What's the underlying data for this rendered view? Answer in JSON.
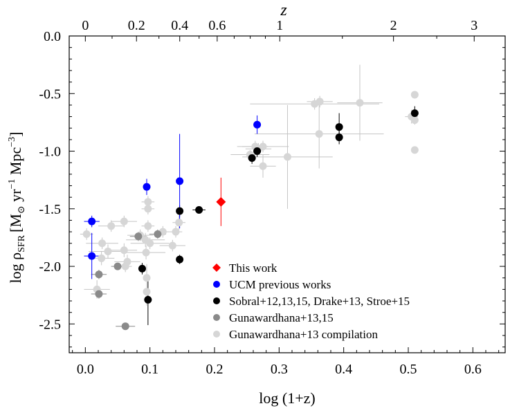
{
  "chart_data": {
    "type": "scatter",
    "xlabel": "log (1+z)",
    "ylabel_main": "log ρ",
    "ylabel_sub": "SFR",
    "ylabel_units_open": "[M",
    "ylabel_units_sun": "⊙",
    "ylabel_units_rest": " yr",
    "ylabel_exp1": "−1",
    "ylabel_units_mpc": " Mpc",
    "ylabel_exp2": "−3",
    "ylabel_units_close": "]",
    "top_axis_label": "z",
    "xlim": [
      -0.025,
      0.65
    ],
    "ylim": [
      -2.75,
      0.0
    ],
    "x_ticks": [
      0.0,
      0.1,
      0.2,
      0.3,
      0.4,
      0.5,
      0.6
    ],
    "x_tick_labels": [
      "0.0",
      "0.1",
      "0.2",
      "0.3",
      "0.4",
      "0.5",
      "0.6"
    ],
    "y_ticks": [
      0.0,
      -0.5,
      -1.0,
      -1.5,
      -2.0,
      -2.5
    ],
    "y_tick_labels": [
      "0.0",
      "-0.5",
      "-1.0",
      "-1.5",
      "-2.0",
      "-2.5"
    ],
    "z_ticks": [
      0,
      0.2,
      0.4,
      0.6,
      1,
      2,
      3
    ],
    "z_tick_labels": [
      "0",
      "0.2",
      "0.4",
      "0.6",
      "1",
      "2",
      "3"
    ],
    "legend_position": "bottom-center",
    "series": [
      {
        "name": "Gunawardhana+13 compilation",
        "color": "#d6d6d6",
        "marker": "circle",
        "points": [
          {
            "x": 0.002,
            "y": -1.72,
            "xerr": 0.01,
            "yerr": 0.05
          },
          {
            "x": 0.018,
            "y": -2.2,
            "xerr": 0.02,
            "yerr": 0.08
          },
          {
            "x": 0.025,
            "y": -1.93,
            "xerr": 0.02,
            "yerr": 0.06
          },
          {
            "x": 0.026,
            "y": -1.8,
            "xerr": 0.025,
            "yerr": 0.05
          },
          {
            "x": 0.035,
            "y": -1.87,
            "xerr": 0.03,
            "yerr": 0.06
          },
          {
            "x": 0.04,
            "y": -1.65,
            "xerr": 0.02,
            "yerr": 0.05
          },
          {
            "x": 0.06,
            "y": -1.61,
            "xerr": 0.02,
            "yerr": 0.05
          },
          {
            "x": 0.06,
            "y": -1.86,
            "xerr": 0.02,
            "yerr": 0.06
          },
          {
            "x": 0.065,
            "y": -1.96,
            "xerr": 0.02,
            "yerr": 0.06
          },
          {
            "x": 0.062,
            "y": -2.0,
            "xerr": 0.01,
            "yerr": 0.05
          },
          {
            "x": 0.085,
            "y": -1.73,
            "xerr": 0.02,
            "yerr": 0.05
          },
          {
            "x": 0.093,
            "y": -1.77,
            "xerr": 0.03,
            "yerr": 0.06
          },
          {
            "x": 0.094,
            "y": -1.88,
            "xerr": 0.03,
            "yerr": 0.06
          },
          {
            "x": 0.095,
            "y": -2.1,
            "xerr": 0.005,
            "yerr": 0.12
          },
          {
            "x": 0.095,
            "y": -2.22,
            "xerr": 0.005,
            "yerr": 0.12
          },
          {
            "x": 0.097,
            "y": -1.5,
            "xerr": 0.01,
            "yerr": 0.05
          },
          {
            "x": 0.097,
            "y": -1.44,
            "xerr": 0.01,
            "yerr": 0.05
          },
          {
            "x": 0.097,
            "y": -1.65,
            "xerr": 0.01,
            "yerr": 0.05
          },
          {
            "x": 0.1,
            "y": -1.8,
            "xerr": 0.03,
            "yerr": 0.05
          },
          {
            "x": 0.12,
            "y": -1.7,
            "xerr": 0.01,
            "yerr": 0.05
          },
          {
            "x": 0.135,
            "y": -1.82,
            "xerr": 0.02,
            "yerr": 0.05
          },
          {
            "x": 0.14,
            "y": -1.7,
            "xerr": 0.01,
            "yerr": 0.05
          },
          {
            "x": 0.145,
            "y": -1.62,
            "xerr": 0.01,
            "yerr": 0.06
          },
          {
            "x": 0.255,
            "y": -1.03,
            "xerr": 0.03,
            "yerr": 0.04
          },
          {
            "x": 0.263,
            "y": -0.96,
            "xerr": 0.02,
            "yerr": 0.05
          },
          {
            "x": 0.268,
            "y": -0.98,
            "xerr": 0.02,
            "yerr": 0.05
          },
          {
            "x": 0.275,
            "y": -1.13,
            "xerr": 0.02,
            "yerr": 0.1
          },
          {
            "x": 0.275,
            "y": -0.96,
            "xerr": 0.04,
            "yerr": 0.05
          },
          {
            "x": 0.313,
            "y": -1.05,
            "xerr": 0.07,
            "yerr": 0.45
          },
          {
            "x": 0.355,
            "y": -0.59,
            "xerr": 0.1,
            "yerr": 0.05
          },
          {
            "x": 0.362,
            "y": -0.85,
            "xerr": 0.1,
            "yerr": 0.3
          },
          {
            "x": 0.363,
            "y": -0.57,
            "xerr": 0.02,
            "yerr": 0.05
          },
          {
            "x": 0.425,
            "y": -0.58,
            "xerr": 0.035,
            "yerr": 0.33
          },
          {
            "x": 0.505,
            "y": -0.7,
            "xerr": 0.01,
            "yerr": 0.06
          },
          {
            "x": 0.51,
            "y": -0.51,
            "xerr": 0.005,
            "yerr": 0.03
          },
          {
            "x": 0.51,
            "y": -0.99,
            "xerr": 0.005,
            "yerr": 0.03
          },
          {
            "x": 0.51,
            "y": -0.73,
            "xerr": 0.005,
            "yerr": 0.04
          }
        ]
      },
      {
        "name": "Gunawardhana+13,15",
        "color": "#8a8a8a",
        "marker": "circle",
        "points": [
          {
            "x": 0.021,
            "y": -2.07,
            "xerr": 0.012,
            "yerr": 0.04
          },
          {
            "x": 0.021,
            "y": -2.24,
            "xerr": 0.012,
            "yerr": 0.04
          },
          {
            "x": 0.05,
            "y": -2.0,
            "xerr": 0.01,
            "yerr": 0.03
          },
          {
            "x": 0.062,
            "y": -2.52,
            "xerr": 0.015,
            "yerr": 0.03
          },
          {
            "x": 0.082,
            "y": -1.74,
            "xerr": 0.013,
            "yerr": 0.04
          },
          {
            "x": 0.112,
            "y": -1.72,
            "xerr": 0.013,
            "yerr": 0.04
          }
        ]
      },
      {
        "name": "Sobral+12,13,15, Drake+13, Stroe+15",
        "color": "#000000",
        "marker": "circle",
        "points": [
          {
            "x": 0.088,
            "y": -2.02,
            "xerr": 0.003,
            "yerr": 0.05
          },
          {
            "x": 0.097,
            "y": -2.29,
            "xerr": 0.003,
            "yerr": 0.22
          },
          {
            "x": 0.146,
            "y": -1.52,
            "xerr": 0.003,
            "yerr": 0.05
          },
          {
            "x": 0.146,
            "y": -1.94,
            "xerr": 0.003,
            "yerr": 0.04
          },
          {
            "x": 0.176,
            "y": -1.51,
            "xerr": 0.01,
            "yerr": 0.03
          },
          {
            "x": 0.258,
            "y": -1.06,
            "xerr": 0.005,
            "yerr": 0.05
          },
          {
            "x": 0.266,
            "y": -1.0,
            "xerr": 0.005,
            "yerr": 0.05
          },
          {
            "x": 0.393,
            "y": -0.79,
            "xerr": 0.003,
            "yerr": 0.12
          },
          {
            "x": 0.393,
            "y": -0.88,
            "xerr": 0.003,
            "yerr": 0.06
          },
          {
            "x": 0.51,
            "y": -0.67,
            "xerr": 0.003,
            "yerr": 0.06
          }
        ]
      },
      {
        "name": "UCM previous works",
        "color": "#0000ff",
        "marker": "circle",
        "points": [
          {
            "x": 0.01,
            "y": -1.61,
            "xerr": 0.012,
            "yerr": 0.05
          },
          {
            "x": 0.01,
            "y": -1.91,
            "xerr": 0.012,
            "yerr": 0.2
          },
          {
            "x": 0.095,
            "y": -1.31,
            "xerr": 0.003,
            "yerr": 0.07
          },
          {
            "x": 0.146,
            "y": -1.26,
            "xerr": 0.003,
            "yerr": 0.41
          },
          {
            "x": 0.266,
            "y": -0.77,
            "xerr": 0.003,
            "yerr": 0.08
          }
        ]
      },
      {
        "name": "This work",
        "color": "#ff0000",
        "marker": "diamond",
        "points": [
          {
            "x": 0.21,
            "y": -1.44,
            "xerr": 0.0,
            "yerr": 0.21
          }
        ]
      }
    ],
    "legend_order": [
      "This work",
      "UCM previous works",
      "Sobral+12,13,15, Drake+13, Stroe+15",
      "Gunawardhana+13,15",
      "Gunawardhana+13 compilation"
    ]
  }
}
